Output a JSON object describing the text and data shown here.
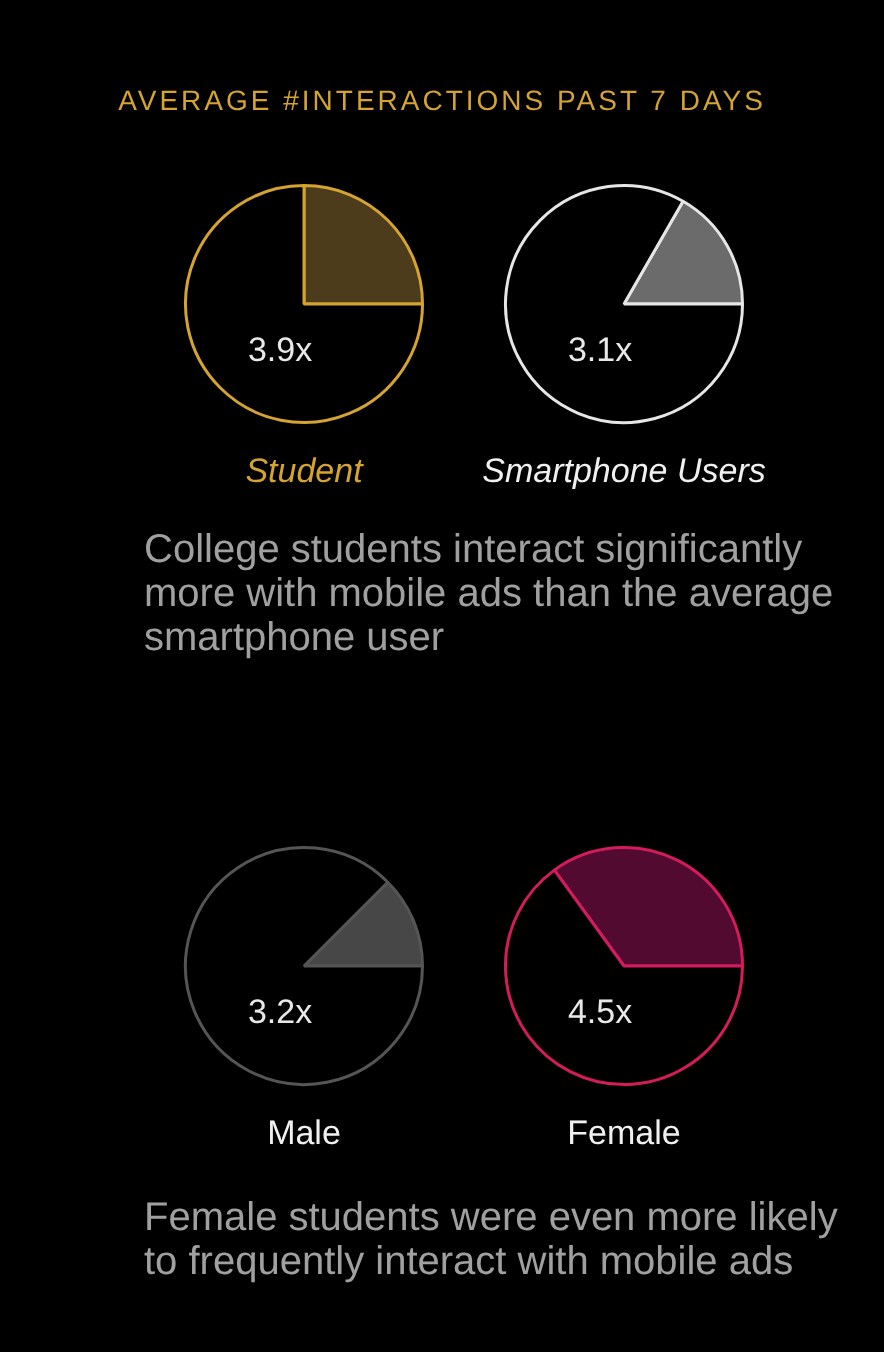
{
  "chart_data": [
    {
      "type": "other",
      "title": "AVERAGE #INTERACTIONS PAST 7 DAYS"
    },
    {
      "type": "pie",
      "title": "Student",
      "categories": [
        null,
        null
      ],
      "values": [
        25,
        75
      ],
      "colors": [
        "#4d3c1b",
        "#000000"
      ],
      "color": "#d4a330",
      "annotations": [
        "3.9x"
      ]
    },
    {
      "type": "pie",
      "title": "Smartphone Users",
      "categories": [
        null,
        null
      ],
      "values": [
        16.7,
        83.3
      ],
      "colors": [
        "#6b6b6b",
        "#000000"
      ],
      "color": "#e6e6e6",
      "annotations": [
        "3.1x"
      ]
    },
    {
      "type": "other",
      "annotations": [
        "College students interact significantly more with mobile ads than the average smartphone user"
      ]
    },
    {
      "type": "pie",
      "title": "Male",
      "categories": [
        null,
        null
      ],
      "values": [
        12.5,
        87.5
      ],
      "colors": [
        "#474747",
        "#000000"
      ],
      "color": "#555555",
      "annotations": [
        "3.2x"
      ]
    },
    {
      "type": "pie",
      "title": "Female",
      "categories": [
        null,
        null
      ],
      "values": [
        35,
        65
      ],
      "colors": [
        "#520a31",
        "#000000"
      ],
      "color": "#d41c5c",
      "annotations": [
        "4.5x"
      ]
    },
    {
      "type": "other",
      "annotations": [
        "Female students were even more likely to frequently interact with mobile ads"
      ]
    }
  ]
}
